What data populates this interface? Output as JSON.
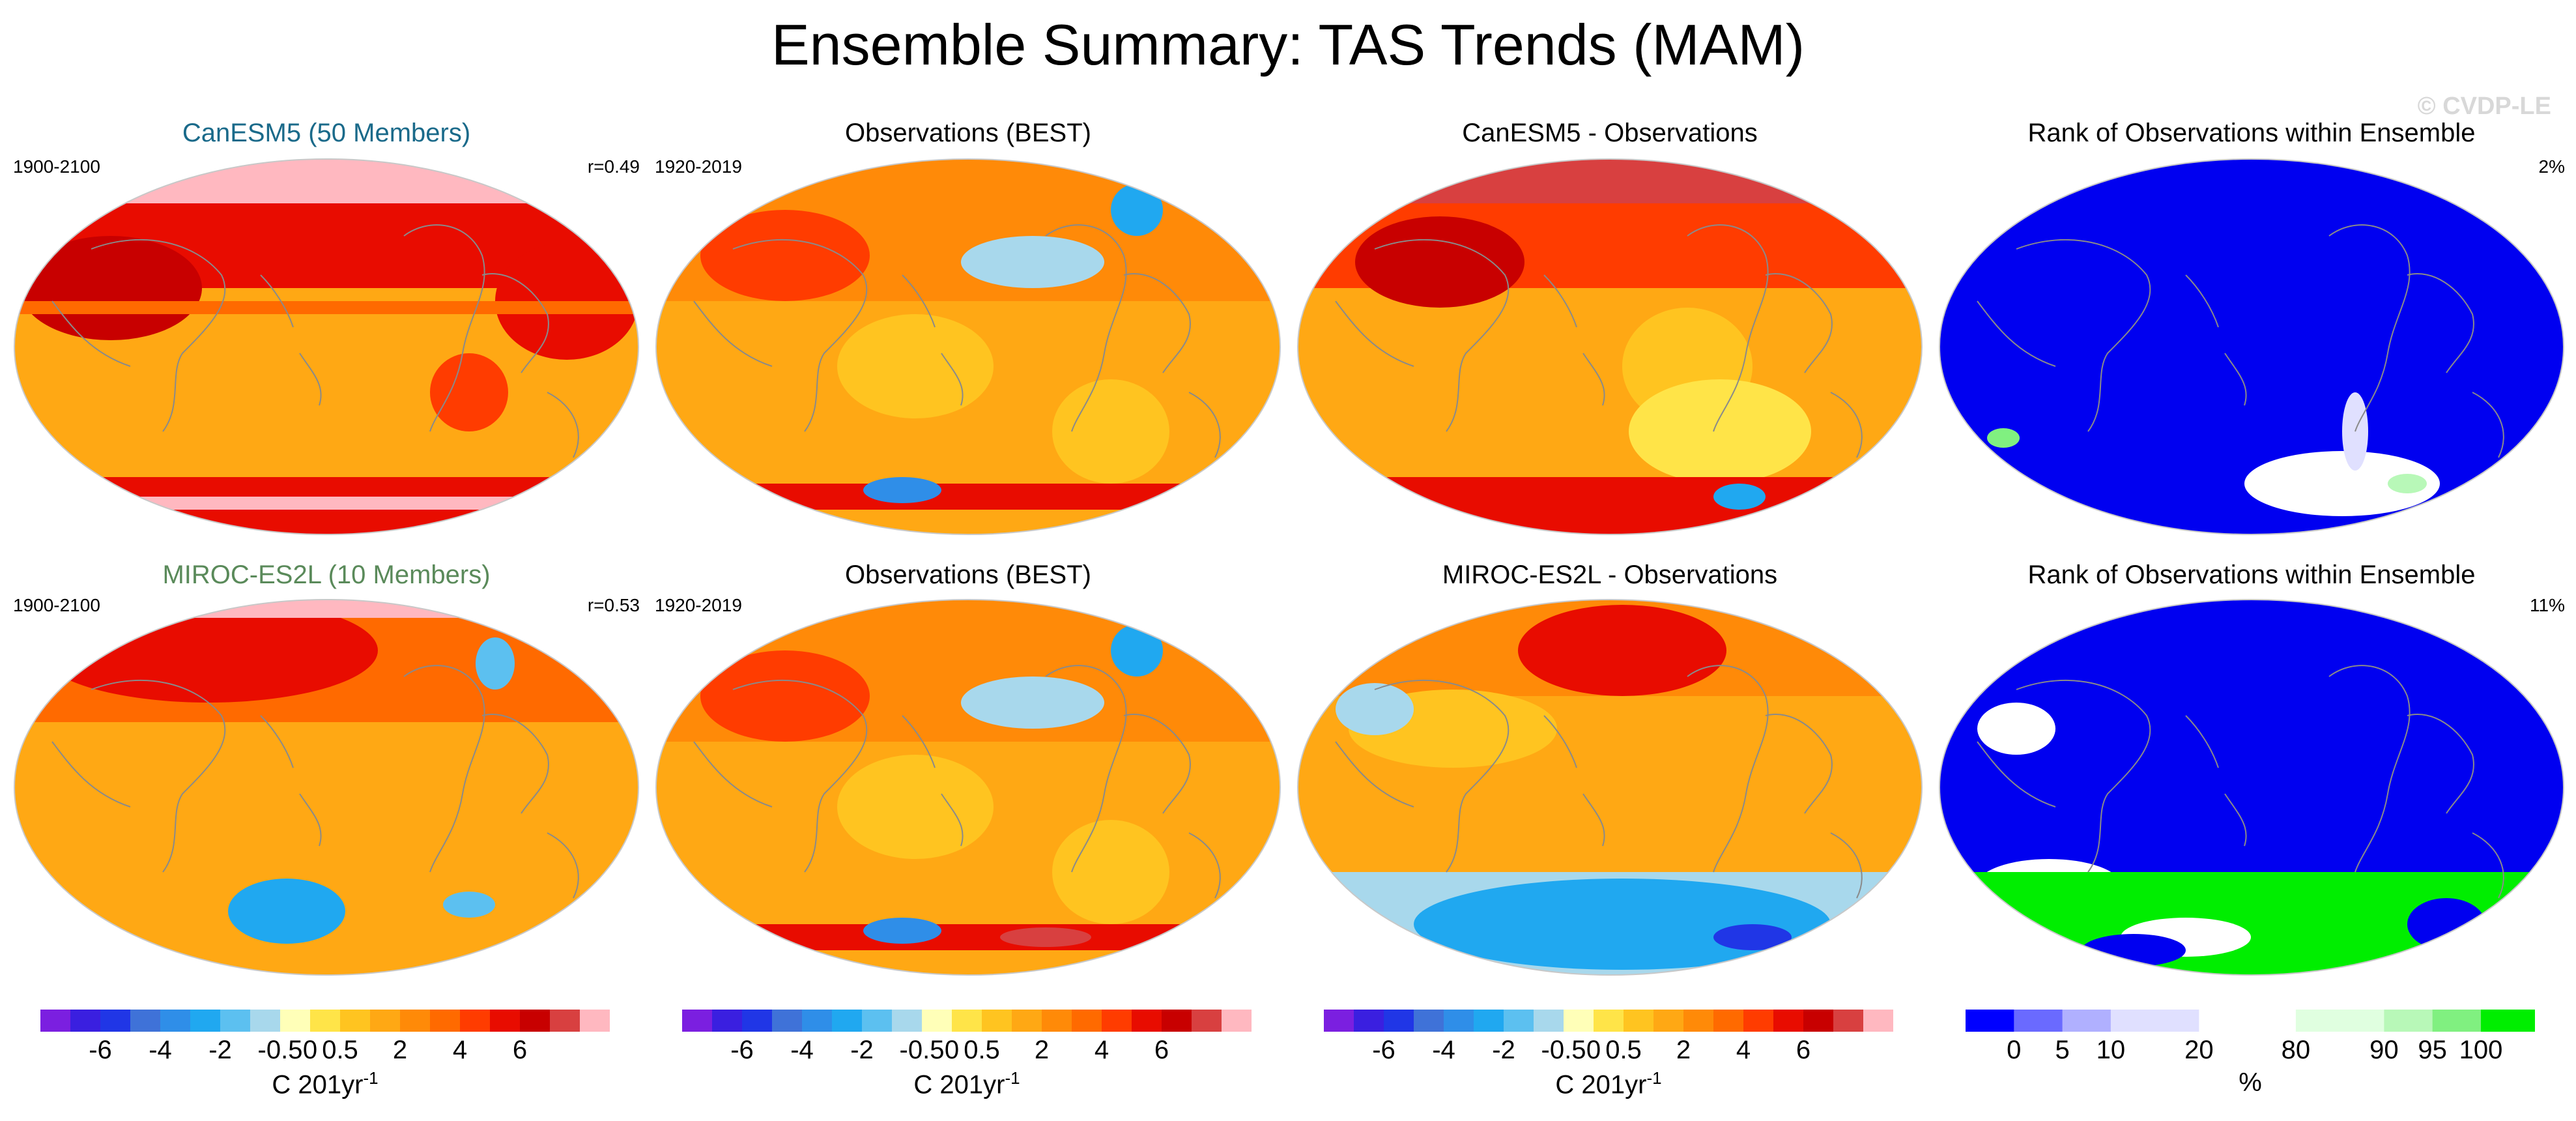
{
  "title": "Ensemble Summary: TAS Trends (MAM)",
  "watermark": "© CVDP-LE",
  "colors": {
    "trend_scale": [
      "#7b1fe0",
      "#3a1fe0",
      "#2036e6",
      "#3f72d8",
      "#2f8ee8",
      "#20a8f0",
      "#5cc0f0",
      "#a8d8ec",
      "#ffffb8",
      "#ffe448",
      "#ffc420",
      "#ffa814",
      "#ff8a08",
      "#ff6a00",
      "#ff3c00",
      "#e80c00",
      "#c80000",
      "#d84040",
      "#ffb8c0"
    ],
    "rank_scale": [
      "#0000ff",
      "#6a6aff",
      "#b0b0ff",
      "#e0e0ff",
      "#ffffff",
      "#e0ffe0",
      "#b8f8b8",
      "#80f080",
      "#00ee00"
    ],
    "rank_base": "#0000f0",
    "trend_base": "#ffa814",
    "coast": "#8a8a8a"
  },
  "chart_data": [
    {
      "type": "heatmap",
      "row": 1,
      "title": "CanESM5 (50 Members)",
      "title_color": "#1a6a8a",
      "left_label": "1900-2100",
      "right_label": "r=0.49",
      "scale": "trend"
    },
    {
      "type": "heatmap",
      "row": 1,
      "title": "Observations (BEST)",
      "title_color": "#000000",
      "left_label": "1920-2019",
      "right_label": "",
      "scale": "trend"
    },
    {
      "type": "heatmap",
      "row": 1,
      "title": "CanESM5 - Observations",
      "title_color": "#000000",
      "left_label": "",
      "right_label": "",
      "scale": "trend"
    },
    {
      "type": "heatmap",
      "row": 1,
      "title": "Rank of Observations within Ensemble",
      "title_color": "#000000",
      "left_label": "",
      "right_label": "2%",
      "scale": "rank"
    },
    {
      "type": "heatmap",
      "row": 2,
      "title": "MIROC-ES2L (10 Members)",
      "title_color": "#5a8a5a",
      "left_label": "1900-2100",
      "right_label": "r=0.53",
      "scale": "trend"
    },
    {
      "type": "heatmap",
      "row": 2,
      "title": "Observations (BEST)",
      "title_color": "#000000",
      "left_label": "1920-2019",
      "right_label": "",
      "scale": "trend"
    },
    {
      "type": "heatmap",
      "row": 2,
      "title": "MIROC-ES2L - Observations",
      "title_color": "#000000",
      "left_label": "",
      "right_label": "",
      "scale": "trend"
    },
    {
      "type": "heatmap",
      "row": 2,
      "title": "Rank of Observations within Ensemble",
      "title_color": "#000000",
      "left_label": "",
      "right_label": "11%",
      "scale": "rank"
    }
  ],
  "colorbars": {
    "trend": {
      "ticks": [
        "-6",
        "-4",
        "-2",
        "-0.5",
        "0",
        "0.5",
        "2",
        "4",
        "6"
      ],
      "unit": "C 201yr",
      "unit_exp": "-1"
    },
    "rank": {
      "ticks": [
        "0",
        "5",
        "10",
        "20",
        "80",
        "90",
        "95",
        "100"
      ],
      "unit": "%"
    }
  }
}
